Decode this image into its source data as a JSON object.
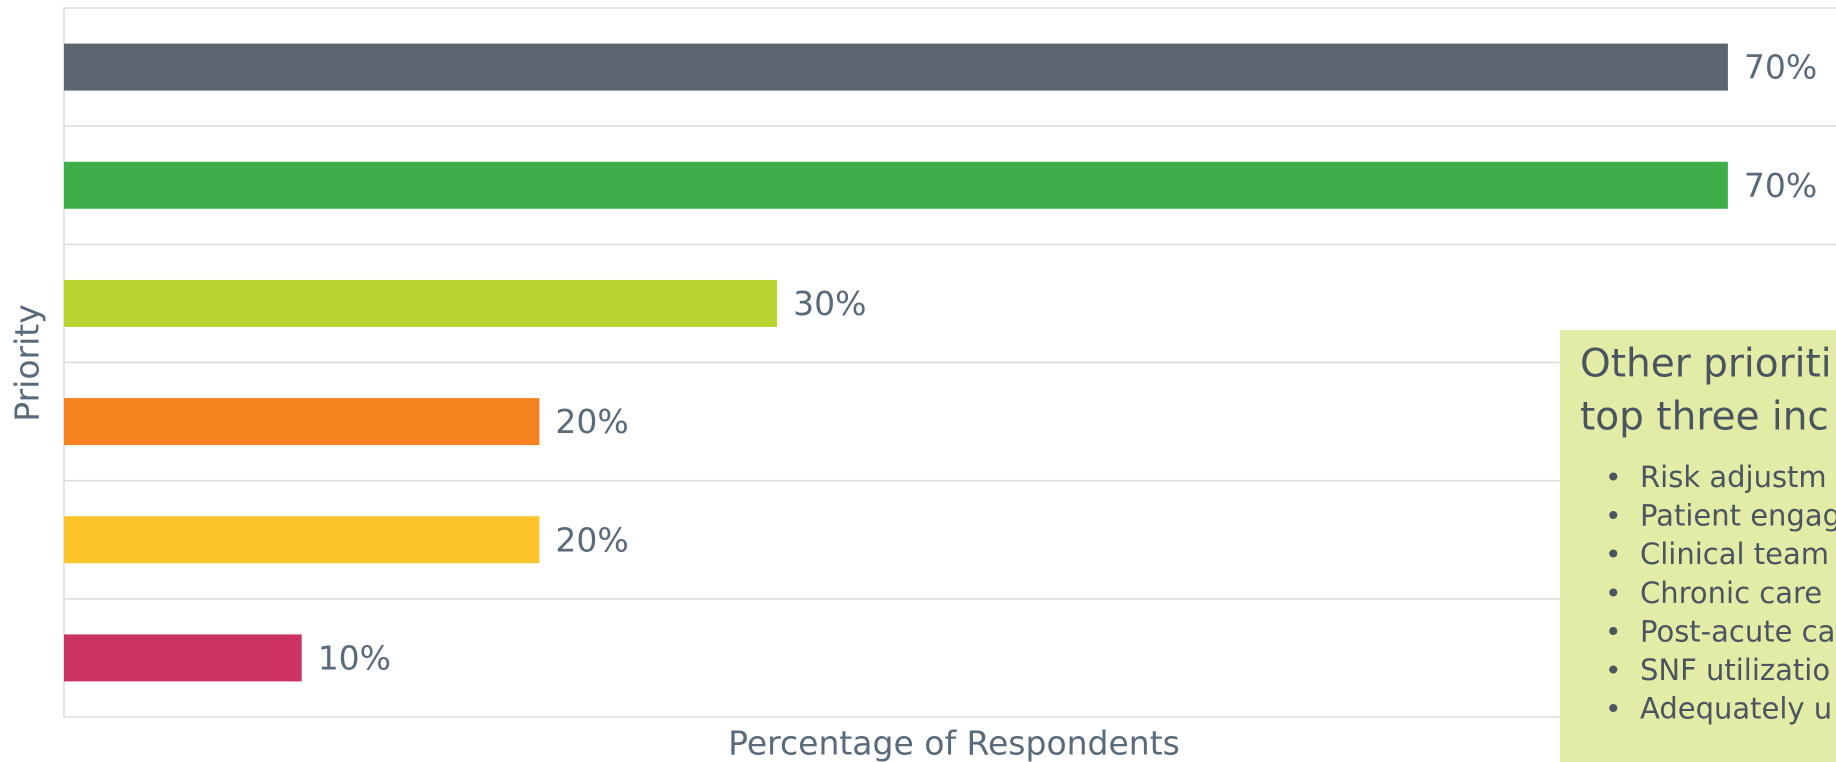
{
  "chart_data": {
    "type": "hbar",
    "values": [
      70,
      70,
      30,
      20,
      20,
      10
    ],
    "value_labels": [
      "70%",
      "70%",
      "30%",
      "20%",
      "20%",
      "10%"
    ],
    "colors": [
      "#5b6670",
      "#3fae49",
      "#bcd42f",
      "#f5821f",
      "#fdc42a",
      "#cc3360"
    ],
    "xlim": [
      0,
      100
    ],
    "xlabel": "Percentage of Respondents",
    "ylabel": "Priority",
    "grid": true,
    "callout": {
      "title_lines": [
        "Other prioriti",
        "top three inc"
      ],
      "items": [
        "Risk adjustm",
        "Patient engag",
        "Clinical team",
        "Chronic care",
        "Post-acute ca",
        "SNF utilizatio",
        "Adequately u"
      ]
    }
  }
}
